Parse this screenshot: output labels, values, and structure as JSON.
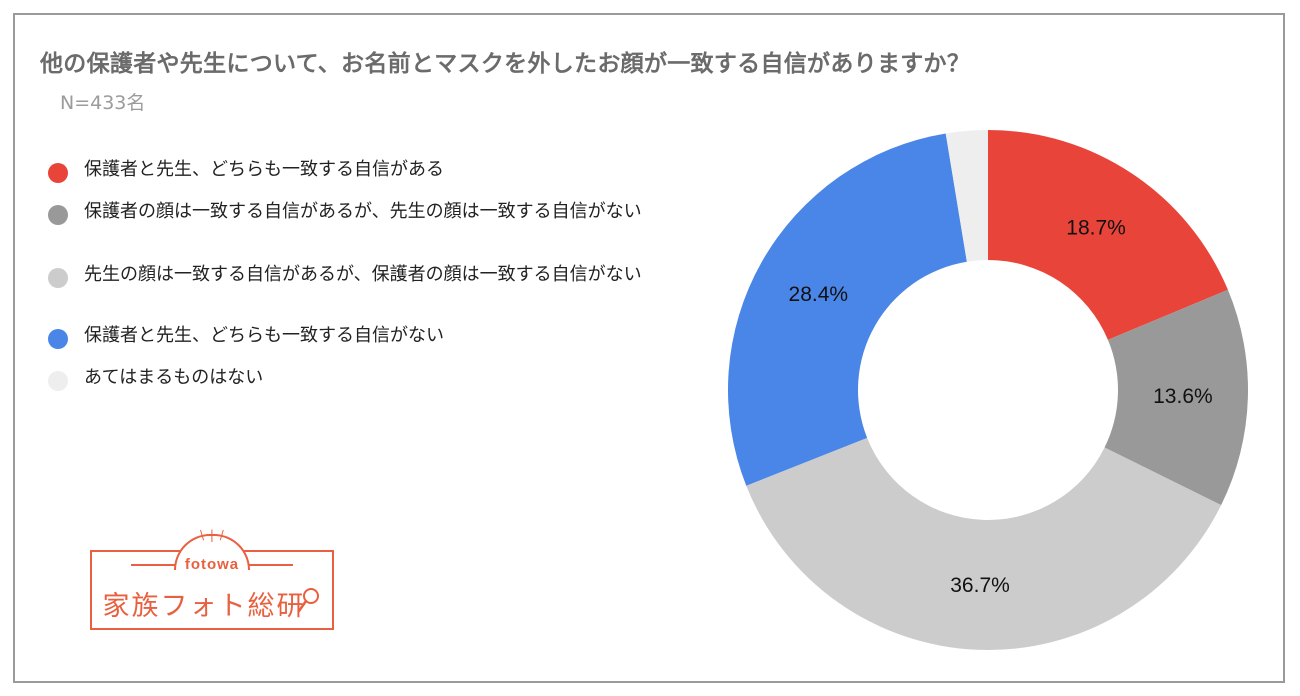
{
  "title": "他の保護者や先生について、お名前とマスクを外したお顔が一致する自信がありますか？",
  "subtitle": "N=433名",
  "logo": {
    "brand": "fotowa",
    "name": "家族フォト総研",
    "color": "#e8603f"
  },
  "chart_data": {
    "type": "pie",
    "donut": true,
    "legend_position": "left",
    "categories": [
      "保護者と先生、どちらも一致する自信がある",
      "保護者の顔は一致する自信があるが、先生の顔は一致する自信がない",
      "先生の顔は一致する自信があるが、保護者の顔は一致する自信がない",
      "保護者と先生、どちらも一致する自信がない",
      "あてはまるものはない"
    ],
    "values": [
      18.7,
      13.6,
      36.7,
      28.4,
      2.6
    ],
    "data_labels": [
      "18.7%",
      "13.6%",
      "36.7%",
      "28.4%",
      ""
    ],
    "colors": [
      "#e9443a",
      "#999999",
      "#cccccc",
      "#4a86e8",
      "#eeeeee"
    ]
  }
}
